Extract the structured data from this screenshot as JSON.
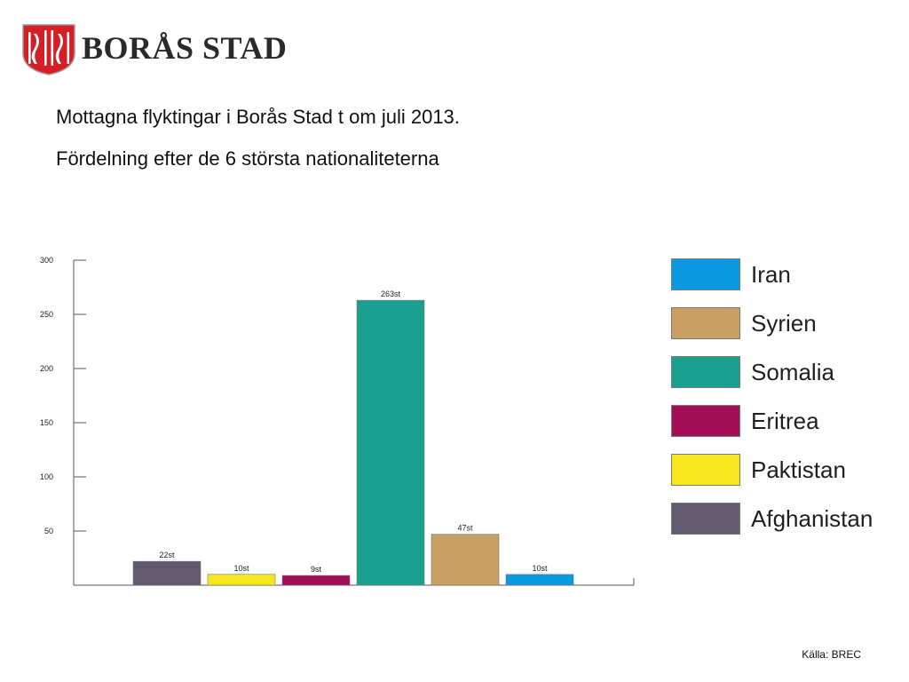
{
  "header": {
    "logo_text": "BORÅS STAD",
    "title_line1": "Mottagna flyktingar i Borås Stad t om juli 2013.",
    "title_line2": "Fördelning efter de 6 största nationaliteterna"
  },
  "chart_data": {
    "type": "bar",
    "categories": [
      "Afghanistan",
      "Paktistan",
      "Eritrea",
      "Somalia",
      "Syrien",
      "Iran"
    ],
    "values": [
      22,
      10,
      9,
      263,
      47,
      10
    ],
    "data_labels": [
      "22st",
      "10st",
      "9st",
      "263st",
      "47st",
      "10st"
    ],
    "colors": [
      "#64586e",
      "#f6e71c",
      "#a30d58",
      "#1aa090",
      "#c99e63",
      "#0b99e2"
    ],
    "y_ticks": [
      50,
      100,
      150,
      200,
      250,
      300
    ],
    "ylim": [
      0,
      300
    ],
    "legend_position": "right",
    "grid": false,
    "legend": [
      {
        "label": "Iran",
        "color": "#0b99e2"
      },
      {
        "label": "Syrien",
        "color": "#c99e63"
      },
      {
        "label": "Somalia",
        "color": "#1aa090"
      },
      {
        "label": "Eritrea",
        "color": "#a30d58"
      },
      {
        "label": "Paktistan",
        "color": "#f6e71c"
      },
      {
        "label": "Afghanistan",
        "color": "#64586e"
      }
    ]
  },
  "footer": {
    "source": "Källa: BREC"
  }
}
